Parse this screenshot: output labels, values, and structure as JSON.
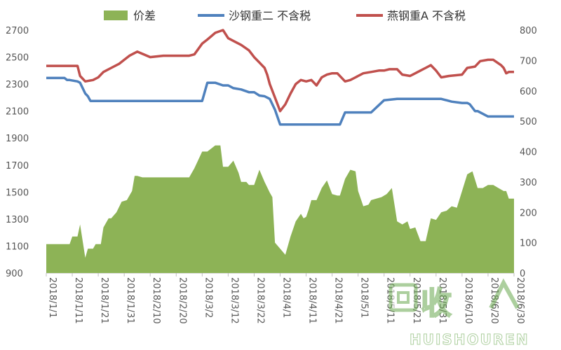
{
  "chart_data": {
    "type": "line",
    "secondary_type": "area",
    "legend_position": "top",
    "grid": false,
    "x_ticks": [
      "2018/1/1",
      "2018/1/11",
      "2018/1/21",
      "2018/1/31",
      "2018/2/10",
      "2018/2/20",
      "2018/3/2",
      "2018/3/12",
      "2018/3/22",
      "2018/4/1",
      "2018/4/11",
      "2018/4/21",
      "2018/5/1",
      "2018/5/11",
      "2018/5/21",
      "2018/5/31",
      "2018/6/10",
      "2018/6/20",
      "2018/6/30"
    ],
    "left_axis": {
      "min": 900,
      "max": 2700,
      "ticks": [
        "900",
        "1100",
        "1300",
        "1500",
        "1700",
        "1900",
        "2100",
        "2300",
        "2500",
        "2700"
      ]
    },
    "right_axis": {
      "min": 0,
      "max": 800,
      "ticks": [
        "0",
        "100",
        "200",
        "300",
        "400",
        "500",
        "600",
        "700",
        "800"
      ]
    },
    "series": [
      {
        "name": "价差",
        "type": "area",
        "axis": "right",
        "color": "#8DB356",
        "x": [
          0,
          9,
          10,
          12,
          13,
          15,
          16,
          18,
          19,
          21,
          22,
          24,
          25,
          27,
          29,
          31,
          33,
          34,
          35,
          37,
          40,
          42,
          45,
          48,
          50,
          52,
          55,
          57,
          60,
          62,
          65,
          67,
          68,
          70,
          72,
          74,
          75,
          77,
          78,
          80,
          82,
          84,
          86,
          87,
          88,
          90,
          92,
          94,
          96,
          98,
          99,
          100,
          101,
          102,
          104,
          106,
          108,
          110,
          112,
          113,
          115,
          117,
          119,
          120,
          122,
          124,
          125,
          127,
          129,
          131,
          133,
          135,
          137,
          139,
          140,
          142,
          144,
          146,
          148,
          150,
          152,
          154,
          156,
          158,
          160,
          162,
          164,
          166,
          168,
          170,
          172,
          174,
          176,
          177,
          178,
          180
        ],
        "y": [
          95,
          95,
          120,
          120,
          160,
          50,
          80,
          80,
          95,
          95,
          150,
          180,
          180,
          200,
          235,
          240,
          270,
          320,
          320,
          315,
          315,
          315,
          315,
          315,
          315,
          315,
          315,
          345,
          400,
          400,
          420,
          420,
          350,
          350,
          370,
          330,
          300,
          300,
          290,
          290,
          340,
          300,
          265,
          250,
          100,
          80,
          60,
          120,
          170,
          195,
          180,
          185,
          210,
          240,
          240,
          280,
          305,
          260,
          255,
          255,
          310,
          340,
          335,
          270,
          220,
          225,
          240,
          245,
          250,
          260,
          280,
          170,
          160,
          170,
          145,
          150,
          105,
          105,
          180,
          175,
          200,
          205,
          220,
          215,
          270,
          325,
          335,
          280,
          280,
          290,
          290,
          280,
          270,
          270,
          245,
          245
        ]
      },
      {
        "name": "沙钢重二 不含税",
        "type": "line",
        "axis": "left",
        "color": "#4F81BD",
        "x": [
          0,
          7,
          8,
          9,
          12,
          13,
          15,
          16,
          17,
          30,
          35,
          60,
          62,
          65,
          68,
          70,
          72,
          75,
          78,
          80,
          82,
          84,
          86,
          88,
          90,
          95,
          100,
          105,
          108,
          110,
          113,
          115,
          117,
          119,
          120,
          122,
          125,
          130,
          135,
          140,
          145,
          147,
          150,
          152,
          154,
          156,
          160,
          162,
          163,
          165,
          166,
          170,
          175,
          180
        ],
        "y": [
          2345,
          2345,
          2330,
          2330,
          2320,
          2310,
          2230,
          2210,
          2175,
          2175,
          2175,
          2175,
          2310,
          2310,
          2290,
          2290,
          2270,
          2260,
          2240,
          2240,
          2215,
          2210,
          2190,
          2110,
          2000,
          2000,
          2000,
          2000,
          2000,
          2000,
          2000,
          2090,
          2090,
          2090,
          2090,
          2090,
          2090,
          2180,
          2190,
          2190,
          2190,
          2190,
          2190,
          2190,
          2180,
          2170,
          2160,
          2160,
          2150,
          2100,
          2100,
          2060,
          2060,
          2060
        ]
      },
      {
        "name": "燕钢重A 不含税",
        "type": "line",
        "axis": "left",
        "color": "#C0504D",
        "x": [
          0,
          12,
          13,
          15,
          18,
          20,
          22,
          25,
          28,
          30,
          32,
          35,
          40,
          45,
          50,
          55,
          57,
          60,
          62,
          65,
          68,
          70,
          72,
          75,
          78,
          80,
          82,
          84,
          85,
          86,
          88,
          90,
          92,
          94,
          96,
          98,
          100,
          102,
          104,
          106,
          108,
          110,
          112,
          115,
          117,
          119,
          120,
          122,
          125,
          128,
          130,
          132,
          135,
          137,
          140,
          142,
          144,
          146,
          148,
          150,
          152,
          155,
          160,
          162,
          165,
          167,
          170,
          172,
          175,
          176,
          177,
          178,
          180
        ],
        "y": [
          2435,
          2435,
          2360,
          2320,
          2330,
          2350,
          2390,
          2420,
          2450,
          2480,
          2510,
          2540,
          2500,
          2510,
          2510,
          2510,
          2520,
          2600,
          2630,
          2680,
          2700,
          2640,
          2620,
          2590,
          2550,
          2500,
          2460,
          2420,
          2370,
          2300,
          2200,
          2100,
          2150,
          2230,
          2300,
          2330,
          2320,
          2330,
          2290,
          2350,
          2370,
          2380,
          2380,
          2320,
          2330,
          2350,
          2360,
          2380,
          2390,
          2400,
          2400,
          2410,
          2410,
          2370,
          2360,
          2380,
          2400,
          2420,
          2440,
          2400,
          2350,
          2360,
          2370,
          2420,
          2430,
          2470,
          2480,
          2480,
          2440,
          2420,
          2380,
          2390,
          2390
        ]
      }
    ]
  }
}
